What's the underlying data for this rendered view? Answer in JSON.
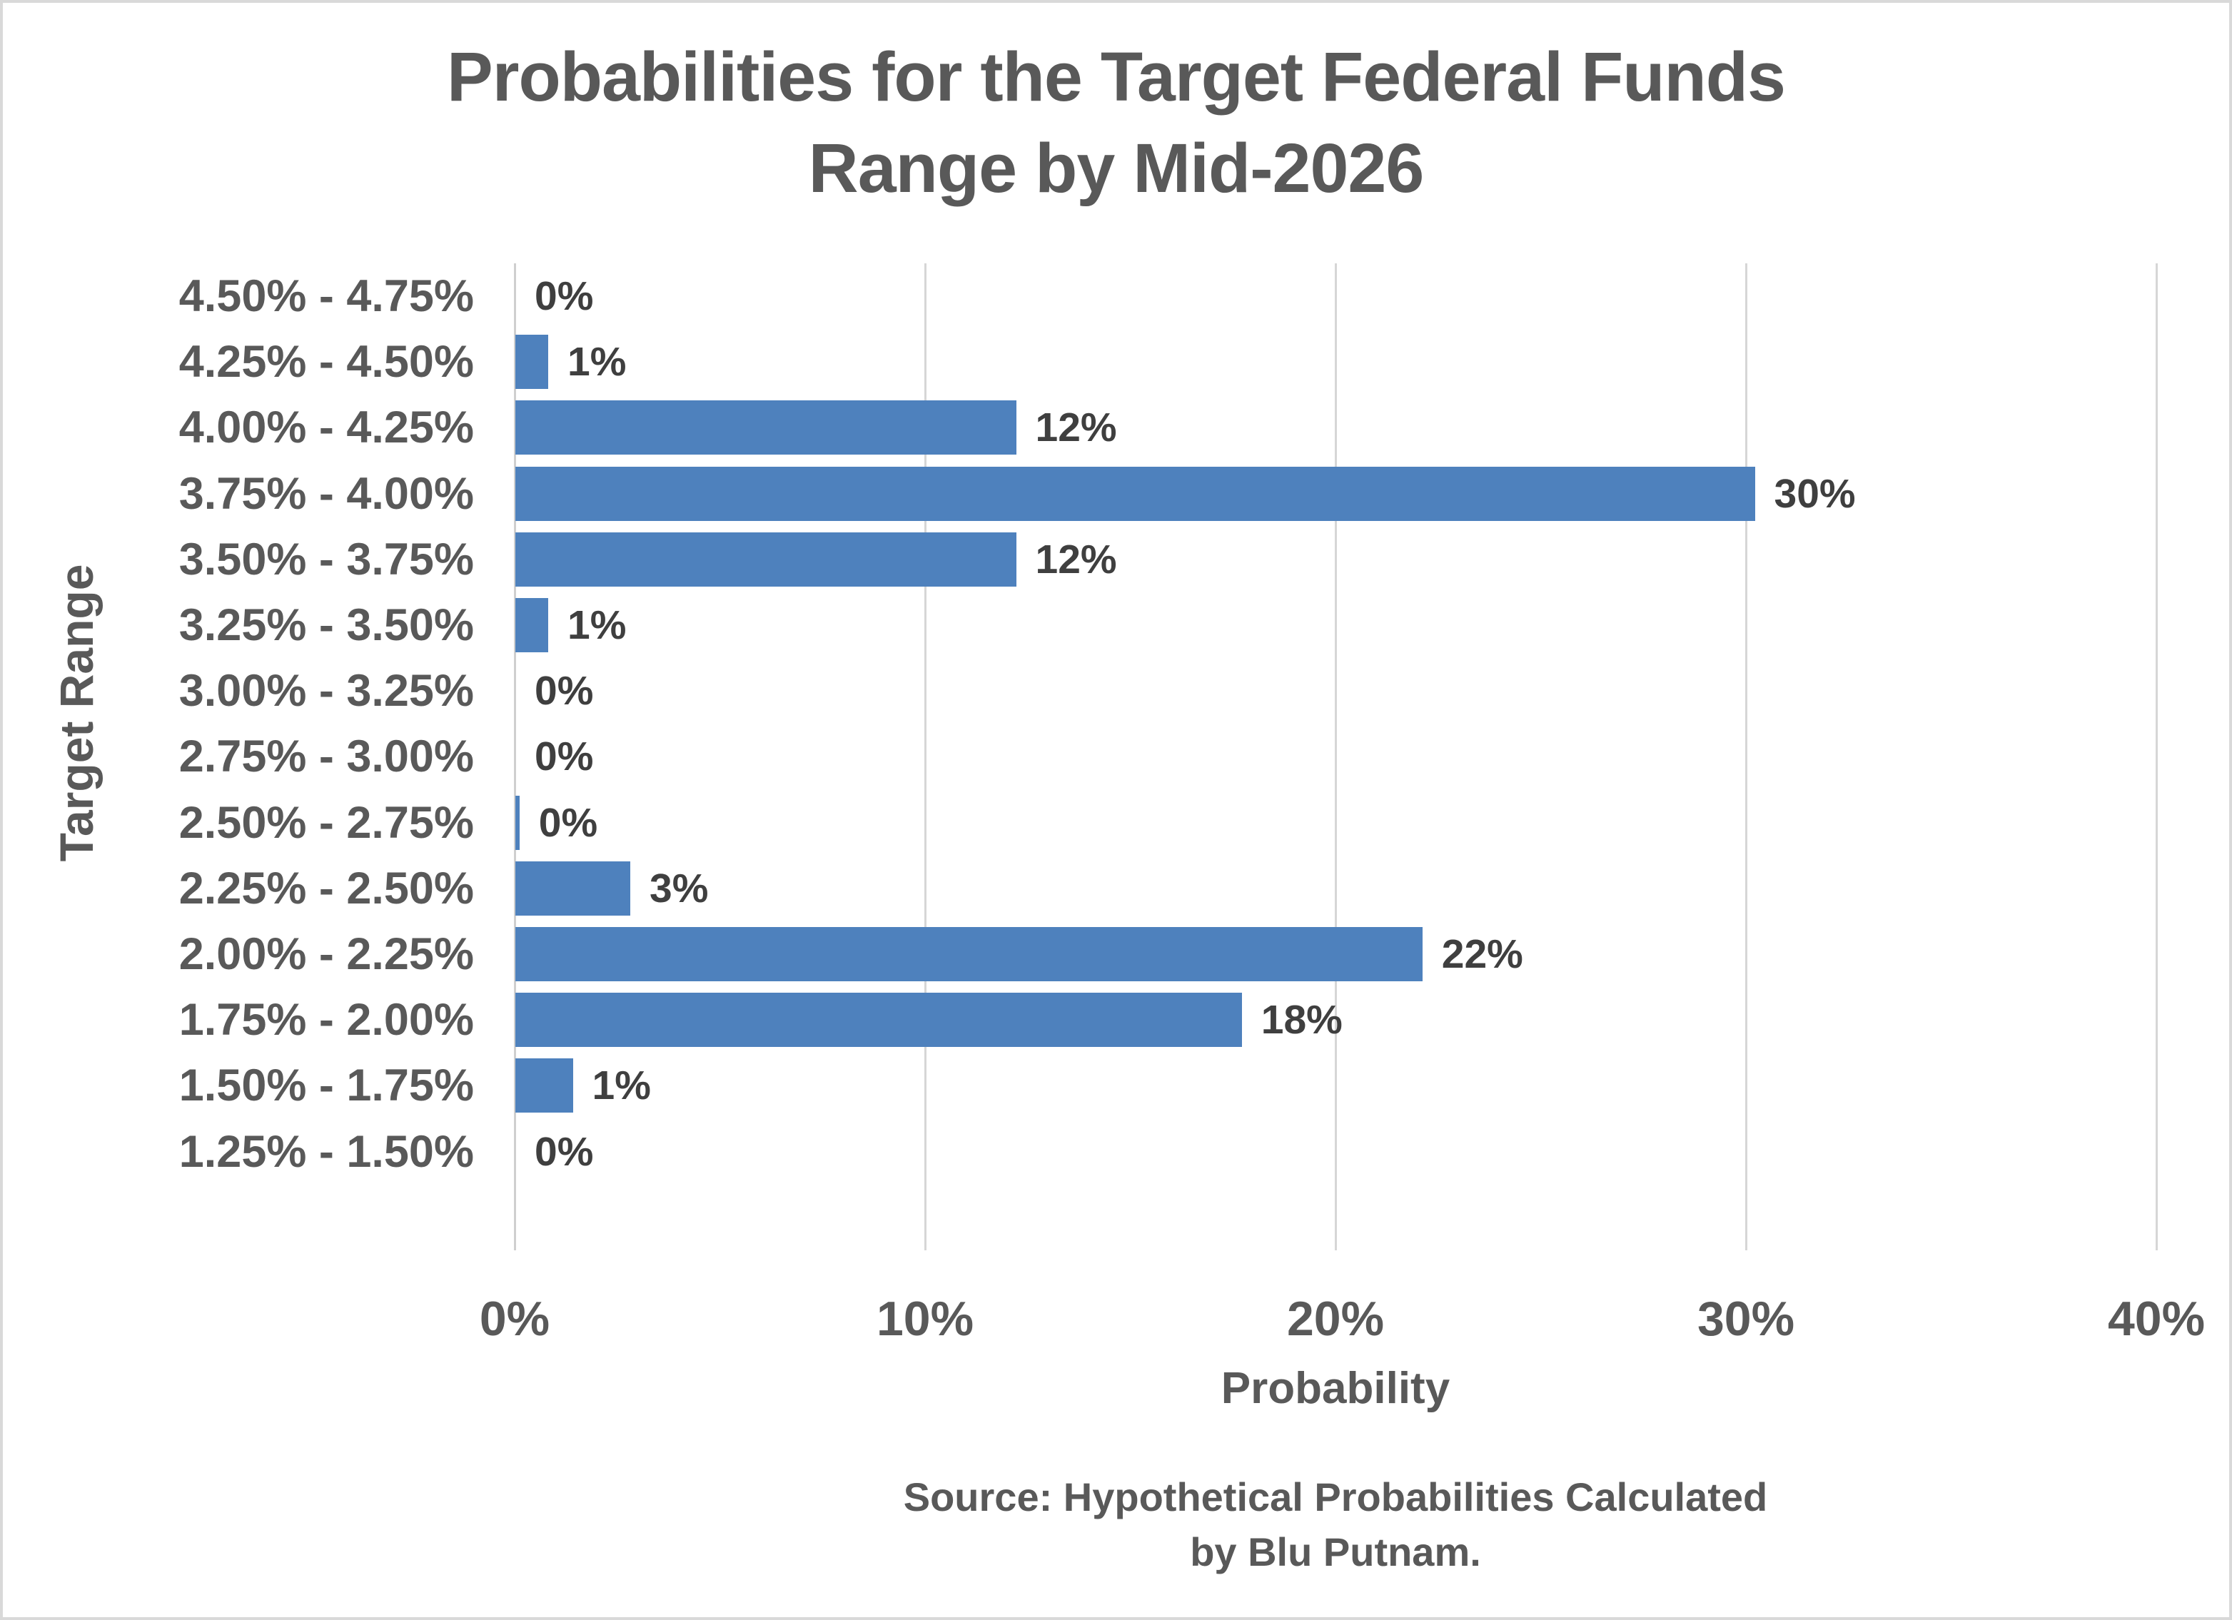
{
  "chart_data": {
    "type": "bar",
    "orientation": "horizontal",
    "title": "Probabilities for the Target Federal Funds Range by Mid-2026",
    "title_lines": [
      "Probabilities for the Target Federal Funds",
      "Range by Mid-2026"
    ],
    "categories": [
      "4.50% - 4.75%",
      "4.25% - 4.50%",
      "4.00% - 4.25%",
      "3.75% - 4.00%",
      "3.50% - 3.75%",
      "3.25% - 3.50%",
      "3.00% - 3.25%",
      "2.75% - 3.00%",
      "2.50% - 2.75%",
      "2.25% - 2.50%",
      "2.00% - 2.25%",
      "1.75% - 2.00%",
      "1.50% - 1.75%",
      "1.25% - 1.50%"
    ],
    "values": [
      0,
      1,
      12,
      30,
      12,
      1,
      0,
      0,
      0,
      3,
      22,
      18,
      1,
      0
    ],
    "value_labels": [
      "0%",
      "1%",
      "12%",
      "30%",
      "12%",
      "1%",
      "0%",
      "0%",
      "0%",
      "3%",
      "22%",
      "18%",
      "1%",
      "0%"
    ],
    "bar_percents_estimated": [
      0,
      0.8,
      12.2,
      30.2,
      12.2,
      0.8,
      0,
      0,
      0.1,
      2.8,
      22.1,
      17.7,
      1.4,
      0
    ],
    "xlabel": "Probability",
    "ylabel": "Target Range",
    "x_ticks": [
      "0%",
      "10%",
      "20%",
      "30%",
      "40%"
    ],
    "x_tick_values": [
      0,
      10,
      20,
      30,
      40
    ],
    "xlim": [
      0,
      40
    ],
    "grid": "vertical-only",
    "legend": "none",
    "source_lines": [
      "Source: Hypothetical Probabilities Calculated",
      "by Blu Putnam."
    ],
    "source": "Source: Hypothetical Probabilities Calculated by Blu Putnam.",
    "colors": {
      "bar": "#4e81bd",
      "title_text": "#595959",
      "category_text": "#595959",
      "value_label_text": "#3f3f3f",
      "tick_text": "#595959",
      "gridline": "#d6d6d6",
      "zero_axis_line": "#cfcfcf",
      "background": "#ffffff",
      "page_border": "#d9d9d9"
    }
  }
}
